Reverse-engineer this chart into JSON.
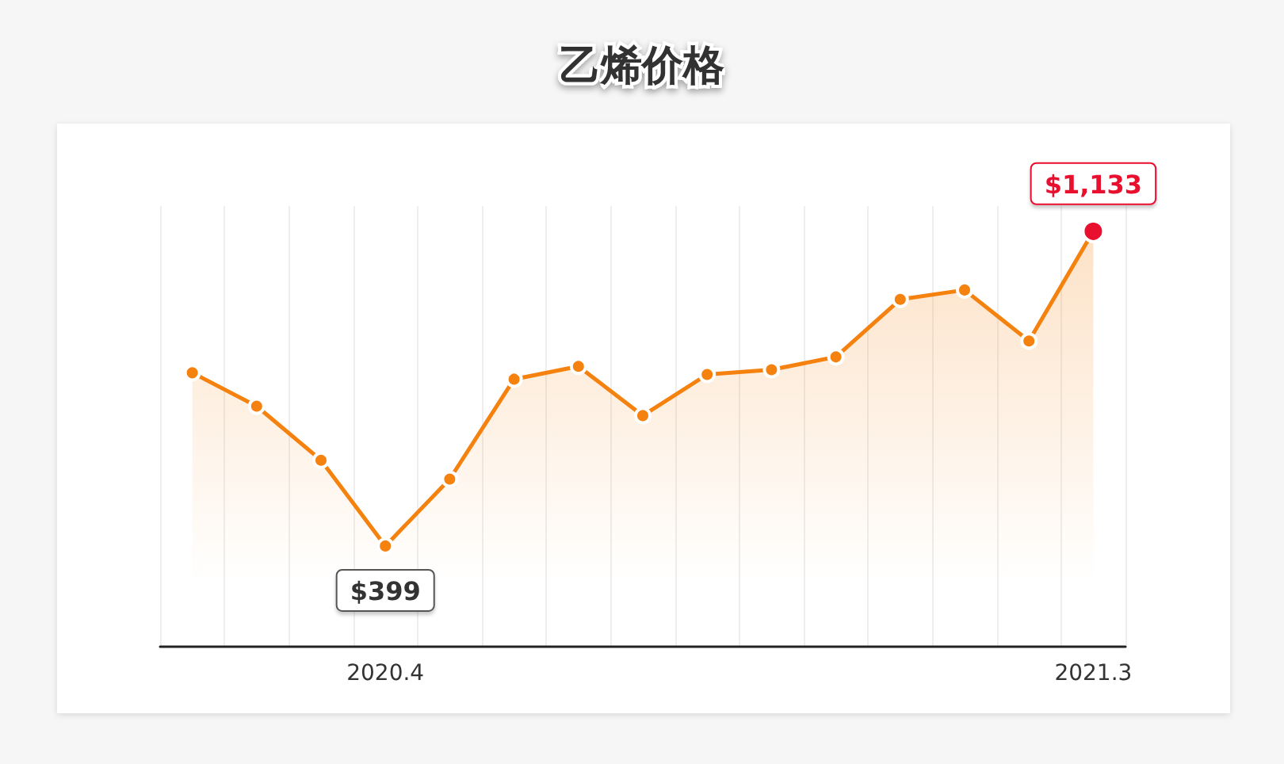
{
  "chart_data": {
    "type": "area",
    "title": "乙烯价格",
    "categories": [
      null,
      null,
      null,
      "2020.4",
      null,
      null,
      null,
      null,
      null,
      null,
      null,
      null,
      null,
      null,
      "2021.3"
    ],
    "series": [
      {
        "color": "#f5820f",
        "values": [
          803,
          725,
          599,
          399,
          555,
          788,
          818,
          703,
          799,
          810,
          840,
          974,
          996,
          877,
          1133
        ],
        "colors": [
          "#f5820f",
          "#f5820f",
          "#f5820f",
          "#f5820f",
          "#f5820f",
          "#f5820f",
          "#f5820f",
          "#f5820f",
          "#f5820f",
          "#f5820f",
          "#f5820f",
          "#f5820f",
          "#f5820f",
          "#f5820f",
          "#e8102e"
        ],
        "value_labels": [
          null,
          null,
          null,
          "$399",
          null,
          null,
          null,
          null,
          null,
          null,
          null,
          null,
          null,
          null,
          "$1,133"
        ]
      }
    ],
    "grid": "x",
    "marker": "circle",
    "tick_labels": "x"
  }
}
